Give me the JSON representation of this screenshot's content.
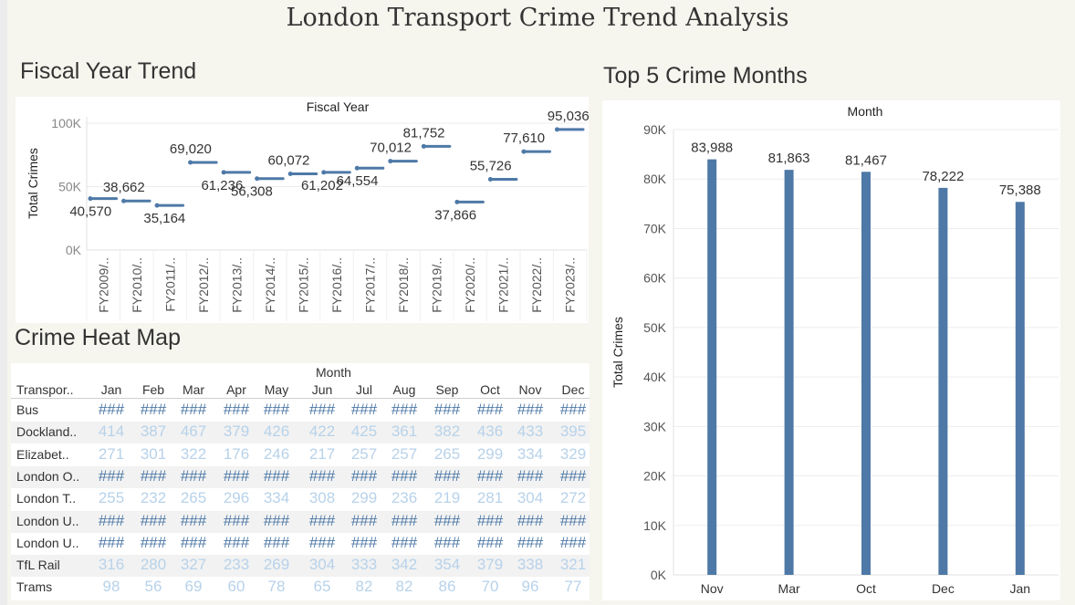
{
  "page": {
    "title": "London Transport Crime Trend Analysis"
  },
  "fiscal": {
    "section_title": "Fiscal Year Trend",
    "chart_data": {
      "type": "line",
      "title": "Fiscal Year",
      "ylabel": "Total Crimes",
      "yticks": [
        "100K",
        "50K",
        "0K"
      ],
      "ylim": [
        0,
        105000
      ],
      "categories": [
        "FY2009/..",
        "FY2010/..",
        "FY2011/..",
        "FY2012/..",
        "FY2013/..",
        "FY2014/..",
        "FY2015/..",
        "FY2016/..",
        "FY2017/..",
        "FY2018/..",
        "FY2019/..",
        "FY2020/..",
        "FY2021/..",
        "FY2022/..",
        "FY2023/.."
      ],
      "values": [
        40570,
        38662,
        35164,
        69020,
        61236,
        56308,
        60072,
        61202,
        64554,
        70012,
        81752,
        37866,
        55726,
        77610,
        95036
      ],
      "labels": [
        "40,570",
        "38,662",
        "35,164",
        "69,020",
        "61,236",
        "56,308",
        "60,072",
        "61,202",
        "64,554",
        "70,012",
        "81,752",
        "37,866",
        "55,726",
        "77,610",
        "95,036"
      ],
      "color": "#4e79a7"
    }
  },
  "months": {
    "section_title": "Top 5 Crime Months",
    "chart_data": {
      "type": "bar",
      "title": "Month",
      "ylabel": "Total Crimes",
      "yticks": [
        "90K",
        "80K",
        "70K",
        "60K",
        "50K",
        "40K",
        "30K",
        "20K",
        "10K",
        "0K"
      ],
      "ylim": [
        0,
        90000
      ],
      "categories": [
        "Nov",
        "Mar",
        "Oct",
        "Dec",
        "Jan"
      ],
      "values": [
        83988,
        81863,
        81467,
        78222,
        75388
      ],
      "labels": [
        "83,988",
        "81,863",
        "81,467",
        "78,222",
        "75,388"
      ],
      "color": "#4e79a7"
    }
  },
  "heatmap": {
    "section_title": "Crime Heat Map",
    "chart_data": {
      "type": "table",
      "title": "Month",
      "row_header": "Transpor..",
      "columns": [
        "Jan",
        "Feb",
        "Mar",
        "Apr",
        "May",
        "Jun",
        "Jul",
        "Aug",
        "Sep",
        "Oct",
        "Nov",
        "Dec"
      ],
      "rows": [
        {
          "label": "Bus",
          "cells": [
            "###",
            "###",
            "###",
            "###",
            "###",
            "###",
            "###",
            "###",
            "###",
            "###",
            "###",
            "###"
          ]
        },
        {
          "label": "Dockland..",
          "cells": [
            "414",
            "387",
            "467",
            "379",
            "426",
            "422",
            "425",
            "361",
            "382",
            "436",
            "433",
            "395"
          ]
        },
        {
          "label": "Elizabet..",
          "cells": [
            "271",
            "301",
            "322",
            "176",
            "246",
            "217",
            "257",
            "257",
            "265",
            "299",
            "334",
            "329"
          ]
        },
        {
          "label": "London O..",
          "cells": [
            "###",
            "###",
            "###",
            "###",
            "###",
            "###",
            "###",
            "###",
            "###",
            "###",
            "###",
            "###"
          ]
        },
        {
          "label": "London T..",
          "cells": [
            "255",
            "232",
            "265",
            "296",
            "334",
            "308",
            "299",
            "236",
            "219",
            "281",
            "304",
            "272"
          ]
        },
        {
          "label": "London U..",
          "cells": [
            "###",
            "###",
            "###",
            "###",
            "###",
            "###",
            "###",
            "###",
            "###",
            "###",
            "###",
            "###"
          ]
        },
        {
          "label": "London U..",
          "cells": [
            "###",
            "###",
            "###",
            "###",
            "###",
            "###",
            "###",
            "###",
            "###",
            "###",
            "###",
            "###"
          ]
        },
        {
          "label": "TfL Rail",
          "cells": [
            "316",
            "280",
            "327",
            "233",
            "269",
            "304",
            "333",
            "342",
            "354",
            "379",
            "338",
            "321"
          ]
        },
        {
          "label": "Trams",
          "cells": [
            "98",
            "56",
            "69",
            "60",
            "78",
            "65",
            "82",
            "82",
            "86",
            "70",
            "96",
            "77"
          ]
        }
      ],
      "colors": {
        "dark": "#4e79a7",
        "light": "#b7d2ea"
      }
    }
  }
}
